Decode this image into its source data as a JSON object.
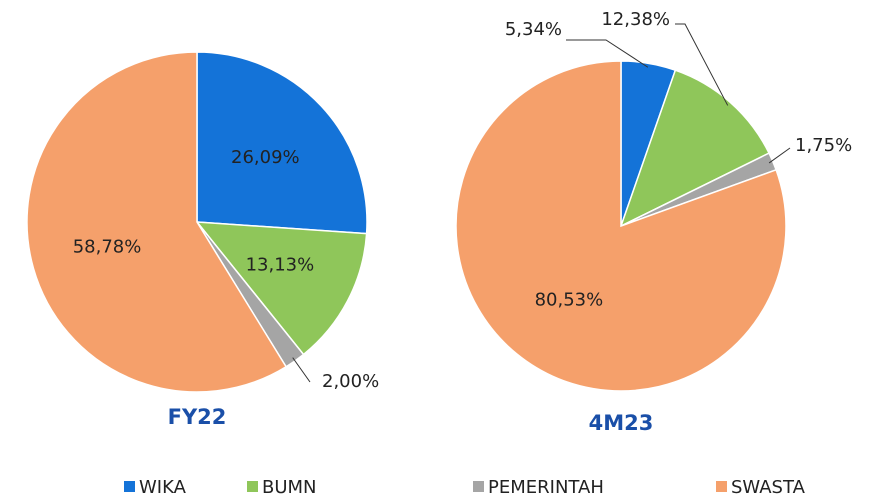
{
  "chart_data": [
    {
      "type": "pie",
      "title": "FY22",
      "categories": [
        "WIKA",
        "BUMN",
        "PEMERINTAH",
        "SWASTA"
      ],
      "colors": [
        "#1473d8",
        "#8fc65a",
        "#a5a5a5",
        "#f5a06b"
      ],
      "values": [
        26.09,
        13.13,
        2.0,
        58.78
      ],
      "value_labels": [
        "26,09%",
        "13,13%",
        "2,00%",
        "58,78%"
      ],
      "legend": "bottom"
    },
    {
      "type": "pie",
      "title": "4M23",
      "categories": [
        "WIKA",
        "BUMN",
        "PEMERINTAH",
        "SWASTA"
      ],
      "colors": [
        "#1473d8",
        "#8fc65a",
        "#a5a5a5",
        "#f5a06b"
      ],
      "values": [
        5.34,
        12.38,
        1.75,
        80.53
      ],
      "value_labels": [
        "5,34%",
        "12,38%",
        "1,75%",
        "80,53%"
      ]
    }
  ]
}
